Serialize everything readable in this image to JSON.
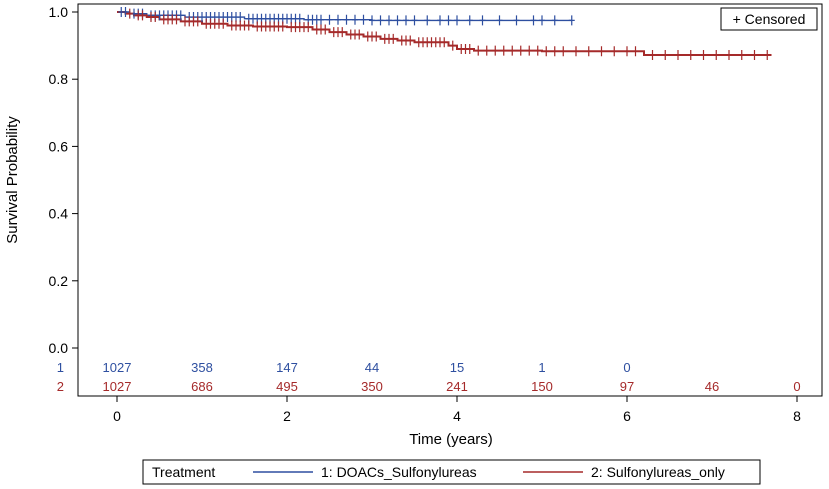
{
  "chart_data": {
    "type": "line",
    "subtype": "kaplan-meier",
    "xlabel": "Time (years)",
    "ylabel": "Survival Probability",
    "xlim": [
      -0.3,
      8.3
    ],
    "ylim": [
      -0.14,
      1.0
    ],
    "x_ticks": [
      0,
      2,
      4,
      6,
      8
    ],
    "y_ticks": [
      0.0,
      0.2,
      0.4,
      0.6,
      0.8,
      1.0
    ],
    "censor_legend": "+ Censored",
    "legend_title": "Treatment",
    "series": [
      {
        "name": "1: DOACs_Sulfonylureas",
        "row_label": "1",
        "color": "#2e4fa0",
        "steps": [
          [
            0,
            1.0
          ],
          [
            0.15,
            0.995
          ],
          [
            0.35,
            0.99
          ],
          [
            0.8,
            0.985
          ],
          [
            1.5,
            0.98
          ],
          [
            2.2,
            0.977
          ],
          [
            3.0,
            0.975
          ],
          [
            5.35,
            0.975
          ]
        ],
        "censor_times": [
          0.05,
          0.1,
          0.2,
          0.25,
          0.3,
          0.4,
          0.45,
          0.5,
          0.55,
          0.6,
          0.65,
          0.7,
          0.75,
          0.85,
          0.9,
          0.95,
          1.0,
          1.05,
          1.1,
          1.15,
          1.2,
          1.25,
          1.3,
          1.35,
          1.4,
          1.45,
          1.55,
          1.6,
          1.65,
          1.7,
          1.75,
          1.8,
          1.85,
          1.9,
          1.95,
          2.0,
          2.05,
          2.1,
          2.15,
          2.25,
          2.3,
          2.35,
          2.4,
          2.5,
          2.6,
          2.7,
          2.8,
          2.9,
          3.0,
          3.1,
          3.2,
          3.3,
          3.4,
          3.5,
          3.65,
          3.8,
          3.9,
          4.0,
          4.15,
          4.3,
          4.5,
          4.7,
          4.9,
          5.0,
          5.15,
          5.35
        ],
        "at_risk": [
          1027,
          358,
          147,
          44,
          15,
          1,
          0
        ]
      },
      {
        "name": "2: Sulfonylureas_only",
        "row_label": "2",
        "color": "#a52a2a",
        "steps": [
          [
            0,
            1.0
          ],
          [
            0.1,
            0.995
          ],
          [
            0.2,
            0.99
          ],
          [
            0.35,
            0.985
          ],
          [
            0.5,
            0.978
          ],
          [
            0.75,
            0.972
          ],
          [
            1.0,
            0.965
          ],
          [
            1.3,
            0.96
          ],
          [
            1.6,
            0.957
          ],
          [
            2.0,
            0.955
          ],
          [
            2.3,
            0.948
          ],
          [
            2.5,
            0.94
          ],
          [
            2.7,
            0.933
          ],
          [
            2.9,
            0.927
          ],
          [
            3.1,
            0.92
          ],
          [
            3.3,
            0.915
          ],
          [
            3.5,
            0.91
          ],
          [
            3.9,
            0.9
          ],
          [
            4.0,
            0.89
          ],
          [
            4.2,
            0.885
          ],
          [
            5.0,
            0.883
          ],
          [
            6.2,
            0.872
          ],
          [
            7.7,
            0.872
          ]
        ],
        "censor_times": [
          0.15,
          0.25,
          0.3,
          0.4,
          0.45,
          0.55,
          0.6,
          0.65,
          0.7,
          0.8,
          0.85,
          0.9,
          0.95,
          1.05,
          1.1,
          1.15,
          1.2,
          1.25,
          1.35,
          1.4,
          1.45,
          1.5,
          1.55,
          1.65,
          1.7,
          1.75,
          1.8,
          1.85,
          1.9,
          1.95,
          2.05,
          2.1,
          2.15,
          2.2,
          2.25,
          2.35,
          2.4,
          2.45,
          2.55,
          2.6,
          2.65,
          2.75,
          2.8,
          2.85,
          2.95,
          3.0,
          3.05,
          3.15,
          3.2,
          3.25,
          3.35,
          3.4,
          3.45,
          3.55,
          3.6,
          3.65,
          3.7,
          3.75,
          3.8,
          3.85,
          3.95,
          4.05,
          4.1,
          4.15,
          4.25,
          4.35,
          4.45,
          4.55,
          4.65,
          4.75,
          4.85,
          4.95,
          5.05,
          5.15,
          5.25,
          5.4,
          5.55,
          5.7,
          5.85,
          6.0,
          6.1,
          6.3,
          6.45,
          6.6,
          6.75,
          6.9,
          7.05,
          7.2,
          7.35,
          7.5,
          7.65
        ],
        "at_risk": [
          1027,
          686,
          495,
          350,
          241,
          150,
          97,
          46,
          0
        ]
      }
    ],
    "at_risk_times_series1": [
      0,
      1,
      2,
      3,
      4,
      5,
      6
    ],
    "at_risk_times_series2": [
      0,
      1,
      2,
      3,
      4,
      5,
      6,
      7,
      8
    ]
  }
}
